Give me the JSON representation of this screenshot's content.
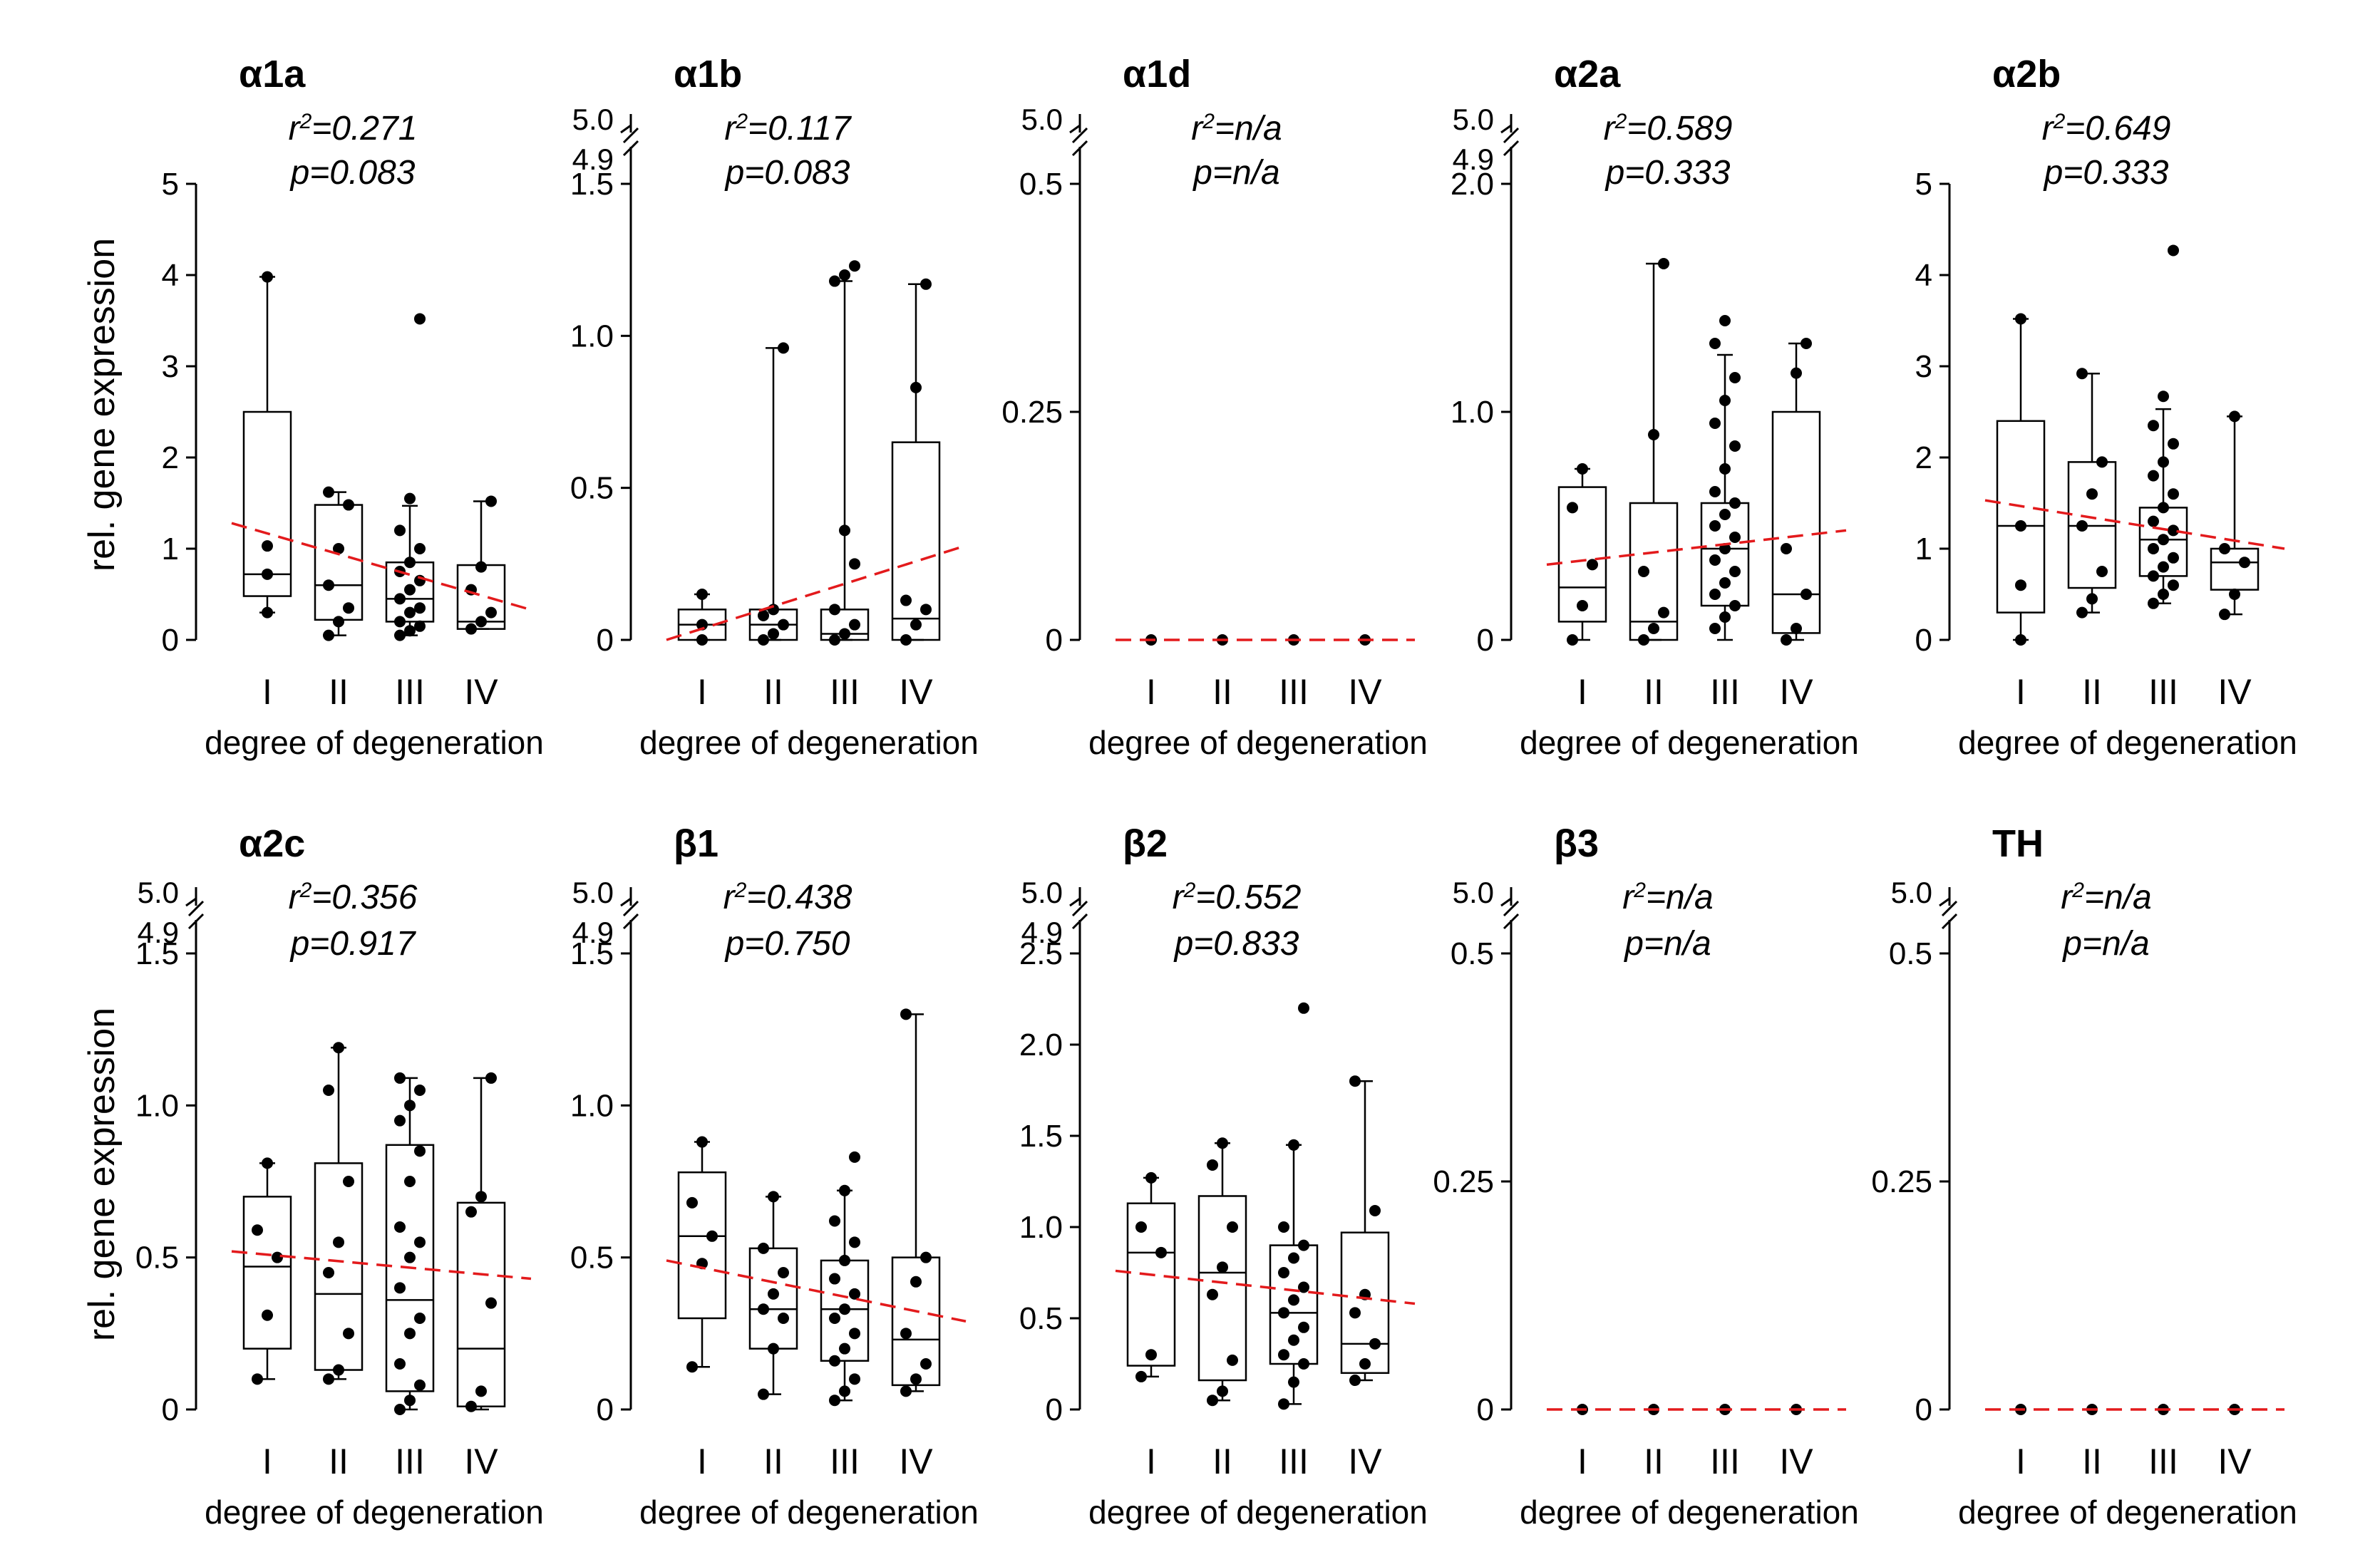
{
  "figure": {
    "ylabel": "rel. gene expression",
    "xlabel": "degree of degeneration",
    "categories": [
      "I",
      "II",
      "III",
      "IV"
    ],
    "trend_color": "#e31a1c"
  },
  "chart_data": [
    {
      "type": "box",
      "title": "α1a",
      "r2": "0.271",
      "p": "0.083",
      "yticks": [
        0,
        1,
        2,
        3,
        4,
        5
      ],
      "ylim": [
        0,
        5
      ],
      "break": null,
      "boxes": [
        {
          "cat": "I",
          "whislo": 0.3,
          "q1": 0.48,
          "med": 0.72,
          "q3": 2.5,
          "whishi": 3.98,
          "points": [
            0.3,
            0.72,
            1.03,
            3.98
          ]
        },
        {
          "cat": "II",
          "whislo": 0.05,
          "q1": 0.22,
          "med": 0.6,
          "q3": 1.48,
          "whishi": 1.62,
          "points": [
            0.05,
            0.2,
            0.35,
            0.6,
            1.0,
            1.48,
            1.62
          ]
        },
        {
          "cat": "III",
          "whislo": 0.05,
          "q1": 0.2,
          "med": 0.45,
          "q3": 0.85,
          "whishi": 1.47,
          "points": [
            0.05,
            0.1,
            0.15,
            0.2,
            0.3,
            0.35,
            0.45,
            0.55,
            0.65,
            0.75,
            0.85,
            1.0,
            1.2,
            1.55,
            3.52
          ]
        },
        {
          "cat": "IV",
          "whislo": 0.12,
          "q1": 0.12,
          "med": 0.2,
          "q3": 0.82,
          "whishi": 1.52,
          "points": [
            0.12,
            0.2,
            0.3,
            0.55,
            0.8,
            1.52
          ]
        }
      ],
      "trend": [
        1.28,
        0.33
      ]
    },
    {
      "type": "box",
      "title": "α1b",
      "r2": "0.117",
      "p": "0.083",
      "yticks": [
        0,
        0.5,
        1.0,
        1.5
      ],
      "ylim": [
        0,
        1.5
      ],
      "break": {
        "low": "4.9",
        "high": "5.0"
      },
      "boxes": [
        {
          "cat": "I",
          "whislo": 0,
          "q1": 0,
          "med": 0.05,
          "q3": 0.1,
          "whishi": 0.15,
          "points": [
            0,
            0.05,
            0.15
          ]
        },
        {
          "cat": "II",
          "whislo": 0,
          "q1": 0,
          "med": 0.05,
          "q3": 0.1,
          "whishi": 0.96,
          "points": [
            0,
            0.02,
            0.05,
            0.08,
            0.1,
            0.96
          ]
        },
        {
          "cat": "III",
          "whislo": 0,
          "q1": 0,
          "med": 0.02,
          "q3": 0.1,
          "whishi": 1.18,
          "points": [
            0,
            0.02,
            0.05,
            0.1,
            0.36,
            0.25,
            1.18,
            1.2,
            1.23
          ]
        },
        {
          "cat": "IV",
          "whislo": 0,
          "q1": 0,
          "med": 0.07,
          "q3": 0.65,
          "whishi": 1.17,
          "points": [
            0,
            0.05,
            0.1,
            0.13,
            0.83,
            1.17
          ]
        }
      ],
      "trend": [
        0.0,
        0.31
      ]
    },
    {
      "type": "box",
      "title": "α1d",
      "r2": "n/a",
      "p": "n/a",
      "yticks": [
        0,
        0.25,
        0.5
      ],
      "ylim": [
        0,
        0.5
      ],
      "break": {
        "low": "",
        "high": "5.0"
      },
      "boxes": [
        {
          "cat": "I",
          "whislo": 0,
          "q1": 0,
          "med": 0,
          "q3": 0,
          "whishi": 0,
          "points": [
            0
          ]
        },
        {
          "cat": "II",
          "whislo": 0,
          "q1": 0,
          "med": 0,
          "q3": 0,
          "whishi": 0,
          "points": [
            0
          ]
        },
        {
          "cat": "III",
          "whislo": 0,
          "q1": 0,
          "med": 0,
          "q3": 0,
          "whishi": 0,
          "points": [
            0
          ]
        },
        {
          "cat": "IV",
          "whislo": 0,
          "q1": 0,
          "med": 0,
          "q3": 0,
          "whishi": 0,
          "points": [
            0
          ]
        }
      ],
      "trend": [
        0,
        0
      ]
    },
    {
      "type": "box",
      "title": "α2a",
      "r2": "0.589",
      "p": "0.333",
      "yticks": [
        0,
        1.0,
        2.0
      ],
      "ylim": [
        0,
        2.0
      ],
      "break": {
        "low": "4.9",
        "high": "5.0"
      },
      "boxes": [
        {
          "cat": "I",
          "whislo": 0,
          "q1": 0.08,
          "med": 0.23,
          "q3": 0.67,
          "whishi": 0.75,
          "points": [
            0,
            0.15,
            0.33,
            0.58,
            0.75
          ]
        },
        {
          "cat": "II",
          "whislo": 0,
          "q1": 0,
          "med": 0.08,
          "q3": 0.6,
          "whishi": 1.65,
          "points": [
            0,
            0.05,
            0.12,
            0.3,
            0.9,
            1.65
          ]
        },
        {
          "cat": "III",
          "whislo": 0,
          "q1": 0.15,
          "med": 0.4,
          "q3": 0.6,
          "whishi": 1.25,
          "points": [
            0.05,
            0.1,
            0.15,
            0.2,
            0.25,
            0.3,
            0.35,
            0.4,
            0.45,
            0.5,
            0.55,
            0.6,
            0.65,
            0.75,
            0.85,
            0.95,
            1.05,
            1.15,
            1.3,
            1.4
          ]
        },
        {
          "cat": "IV",
          "whislo": 0,
          "q1": 0.03,
          "med": 0.2,
          "q3": 1.0,
          "whishi": 1.3,
          "points": [
            0,
            0.05,
            0.2,
            0.4,
            1.17,
            1.3
          ]
        }
      ],
      "trend": [
        0.33,
        0.48
      ]
    },
    {
      "type": "box",
      "title": "α2b",
      "r2": "0.649",
      "p": "0.333",
      "yticks": [
        0,
        1,
        2,
        3,
        4,
        5
      ],
      "ylim": [
        0,
        5
      ],
      "break": null,
      "boxes": [
        {
          "cat": "I",
          "whislo": 0,
          "q1": 0.3,
          "med": 1.25,
          "q3": 2.4,
          "whishi": 3.52,
          "points": [
            0,
            0.6,
            1.25,
            3.52
          ]
        },
        {
          "cat": "II",
          "whislo": 0.3,
          "q1": 0.57,
          "med": 1.25,
          "q3": 1.95,
          "whishi": 2.92,
          "points": [
            0.3,
            0.45,
            0.75,
            1.25,
            1.6,
            1.95,
            2.92
          ]
        },
        {
          "cat": "III",
          "whislo": 0.4,
          "q1": 0.7,
          "med": 1.1,
          "q3": 1.45,
          "whishi": 2.53,
          "points": [
            0.4,
            0.5,
            0.6,
            0.7,
            0.8,
            0.9,
            1.0,
            1.1,
            1.2,
            1.3,
            1.45,
            1.6,
            1.8,
            1.95,
            2.15,
            2.35,
            2.67,
            4.27
          ]
        },
        {
          "cat": "IV",
          "whislo": 0.28,
          "q1": 0.55,
          "med": 0.85,
          "q3": 1.0,
          "whishi": 2.45,
          "points": [
            0.28,
            0.5,
            0.85,
            1.0,
            2.45
          ]
        }
      ],
      "trend": [
        1.53,
        1.0
      ]
    },
    {
      "type": "box",
      "title": "α2c",
      "r2": "0.356",
      "p": "0.917",
      "yticks": [
        0,
        0.5,
        1.0,
        1.5
      ],
      "ylim": [
        0,
        1.5
      ],
      "break": {
        "low": "4.9",
        "high": "5.0"
      },
      "boxes": [
        {
          "cat": "I",
          "whislo": 0.1,
          "q1": 0.2,
          "med": 0.47,
          "q3": 0.7,
          "whishi": 0.81,
          "points": [
            0.1,
            0.31,
            0.5,
            0.59,
            0.81
          ]
        },
        {
          "cat": "II",
          "whislo": 0.1,
          "q1": 0.13,
          "med": 0.38,
          "q3": 0.81,
          "whishi": 1.19,
          "points": [
            0.1,
            0.13,
            0.25,
            0.45,
            0.55,
            0.75,
            1.05,
            1.19
          ]
        },
        {
          "cat": "III",
          "whislo": 0,
          "q1": 0.06,
          "med": 0.36,
          "q3": 0.87,
          "whishi": 1.09,
          "points": [
            0,
            0.03,
            0.08,
            0.15,
            0.25,
            0.3,
            0.4,
            0.5,
            0.55,
            0.6,
            0.75,
            0.85,
            0.95,
            1.0,
            1.05,
            1.09
          ]
        },
        {
          "cat": "IV",
          "whislo": 0,
          "q1": 0.01,
          "med": 0.2,
          "q3": 0.68,
          "whishi": 1.09,
          "points": [
            0.01,
            0.06,
            0.35,
            0.65,
            0.7,
            1.09
          ]
        }
      ],
      "trend": [
        0.52,
        0.43
      ]
    },
    {
      "type": "box",
      "title": "β1",
      "r2": "0.438",
      "p": "0.750",
      "yticks": [
        0,
        0.5,
        1.0,
        1.5
      ],
      "ylim": [
        0,
        1.5
      ],
      "break": {
        "low": "4.9",
        "high": "5.0"
      },
      "boxes": [
        {
          "cat": "I",
          "whislo": 0.14,
          "q1": 0.3,
          "med": 0.57,
          "q3": 0.78,
          "whishi": 0.88,
          "points": [
            0.14,
            0.48,
            0.57,
            0.68,
            0.88
          ]
        },
        {
          "cat": "II",
          "whislo": 0.05,
          "q1": 0.2,
          "med": 0.33,
          "q3": 0.53,
          "whishi": 0.7,
          "points": [
            0.05,
            0.2,
            0.3,
            0.33,
            0.38,
            0.45,
            0.53,
            0.7
          ]
        },
        {
          "cat": "III",
          "whislo": 0.03,
          "q1": 0.16,
          "med": 0.33,
          "q3": 0.49,
          "whishi": 0.72,
          "points": [
            0.03,
            0.06,
            0.1,
            0.16,
            0.2,
            0.25,
            0.3,
            0.33,
            0.38,
            0.43,
            0.49,
            0.55,
            0.62,
            0.72,
            0.83
          ]
        },
        {
          "cat": "IV",
          "whislo": 0.06,
          "q1": 0.08,
          "med": 0.23,
          "q3": 0.5,
          "whishi": 1.3,
          "points": [
            0.06,
            0.1,
            0.15,
            0.25,
            0.42,
            0.5,
            1.3
          ]
        }
      ],
      "trend": [
        0.49,
        0.29
      ]
    },
    {
      "type": "box",
      "title": "β2",
      "r2": "0.552",
      "p": "0.833",
      "yticks": [
        0,
        0.5,
        1.0,
        1.5,
        2.0,
        2.5
      ],
      "ylim": [
        0,
        2.5
      ],
      "break": {
        "low": "4.9",
        "high": "5.0"
      },
      "boxes": [
        {
          "cat": "I",
          "whislo": 0.18,
          "q1": 0.24,
          "med": 0.86,
          "q3": 1.13,
          "whishi": 1.27,
          "points": [
            0.18,
            0.3,
            0.86,
            1.0,
            1.27
          ]
        },
        {
          "cat": "II",
          "whislo": 0.05,
          "q1": 0.16,
          "med": 0.75,
          "q3": 1.17,
          "whishi": 1.46,
          "points": [
            0.05,
            0.1,
            0.27,
            0.63,
            0.78,
            1.0,
            1.34,
            1.46
          ]
        },
        {
          "cat": "III",
          "whislo": 0.03,
          "q1": 0.25,
          "med": 0.53,
          "q3": 0.9,
          "whishi": 1.45,
          "points": [
            0.03,
            0.15,
            0.25,
            0.3,
            0.38,
            0.45,
            0.53,
            0.6,
            0.67,
            0.75,
            0.83,
            0.9,
            1.0,
            1.45,
            2.2
          ]
        },
        {
          "cat": "IV",
          "whislo": 0.16,
          "q1": 0.2,
          "med": 0.36,
          "q3": 0.97,
          "whishi": 1.8,
          "points": [
            0.16,
            0.25,
            0.36,
            0.53,
            0.63,
            1.09,
            1.8
          ]
        }
      ],
      "trend": [
        0.76,
        0.58
      ]
    },
    {
      "type": "box",
      "title": "β3",
      "r2": "n/a",
      "p": "n/a",
      "yticks": [
        0,
        0.25,
        0.5
      ],
      "ylim": [
        0,
        0.5
      ],
      "break": {
        "low": "",
        "high": "5.0"
      },
      "boxes": [
        {
          "cat": "I",
          "whislo": 0,
          "q1": 0,
          "med": 0,
          "q3": 0,
          "whishi": 0,
          "points": [
            0
          ]
        },
        {
          "cat": "II",
          "whislo": 0,
          "q1": 0,
          "med": 0,
          "q3": 0,
          "whishi": 0,
          "points": [
            0
          ]
        },
        {
          "cat": "III",
          "whislo": 0,
          "q1": 0,
          "med": 0,
          "q3": 0,
          "whishi": 0,
          "points": [
            0
          ]
        },
        {
          "cat": "IV",
          "whislo": 0,
          "q1": 0,
          "med": 0,
          "q3": 0,
          "whishi": 0,
          "points": [
            0
          ]
        }
      ],
      "trend": [
        0,
        0
      ]
    },
    {
      "type": "box",
      "title": "TH",
      "r2": "n/a",
      "p": "n/a",
      "yticks": [
        0,
        0.25,
        0.5
      ],
      "ylim": [
        0,
        0.5
      ],
      "break": {
        "low": "",
        "high": "5.0"
      },
      "boxes": [
        {
          "cat": "I",
          "whislo": 0,
          "q1": 0,
          "med": 0,
          "q3": 0,
          "whishi": 0,
          "points": [
            0
          ]
        },
        {
          "cat": "II",
          "whislo": 0,
          "q1": 0,
          "med": 0,
          "q3": 0,
          "whishi": 0,
          "points": [
            0
          ]
        },
        {
          "cat": "III",
          "whislo": 0,
          "q1": 0,
          "med": 0,
          "q3": 0,
          "whishi": 0,
          "points": [
            0
          ]
        },
        {
          "cat": "IV",
          "whislo": 0,
          "q1": 0,
          "med": 0,
          "q3": 0,
          "whishi": 0,
          "points": [
            0
          ]
        }
      ],
      "trend": [
        0,
        0
      ]
    }
  ]
}
